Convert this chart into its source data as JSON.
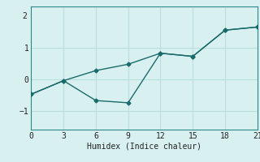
{
  "xlabel": "Humidex (Indice chaleur)",
  "background_color": "#d9f0f0",
  "grid_color": "#b8dede",
  "line_color": "#1a6b6b",
  "xlim": [
    0,
    21
  ],
  "ylim": [
    -1.6,
    2.3
  ],
  "xticks": [
    0,
    3,
    6,
    9,
    12,
    15,
    18,
    21
  ],
  "yticks": [
    -1,
    0,
    1
  ],
  "series1_x": [
    0,
    3,
    6,
    9,
    12,
    15,
    18,
    21
  ],
  "series1_y": [
    -0.48,
    -0.05,
    0.27,
    0.47,
    0.82,
    0.72,
    1.55,
    1.65
  ],
  "series2_x": [
    0,
    3,
    6,
    9,
    12,
    15,
    18,
    21
  ],
  "series2_y": [
    -0.48,
    -0.05,
    -0.68,
    -0.75,
    0.82,
    0.72,
    1.55,
    1.65
  ],
  "marker_size": 2.5,
  "line_width": 1.0
}
